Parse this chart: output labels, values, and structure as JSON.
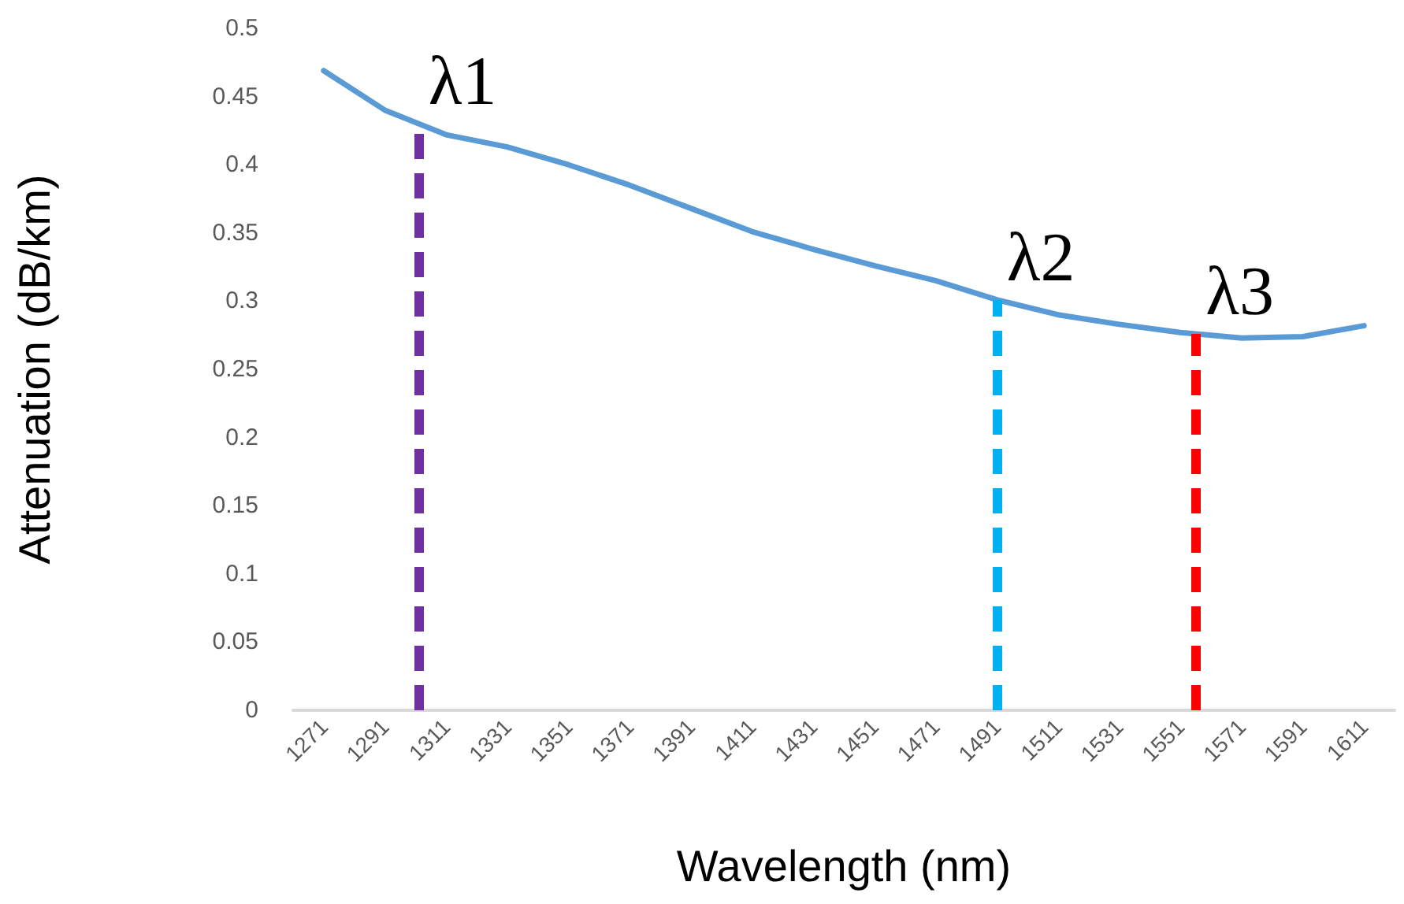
{
  "chart_data": {
    "type": "line",
    "xlabel": "Wavelength (nm)",
    "ylabel": "Attenuation (dB/km)",
    "x": [
      1271,
      1291,
      1311,
      1331,
      1351,
      1371,
      1391,
      1411,
      1431,
      1451,
      1471,
      1491,
      1511,
      1531,
      1551,
      1571,
      1591,
      1611
    ],
    "series": [
      {
        "color": "#5b9bd5",
        "values": [
          0.469,
          0.44,
          0.422,
          0.413,
          0.4,
          0.385,
          0.368,
          0.351,
          0.338,
          0.326,
          0.315,
          0.301,
          0.29,
          0.283,
          0.277,
          0.273,
          0.274,
          0.282
        ]
      }
    ],
    "xlim": [
      1261,
      1621
    ],
    "xticks": [
      1271,
      1291,
      1311,
      1331,
      1351,
      1371,
      1391,
      1411,
      1431,
      1451,
      1471,
      1491,
      1511,
      1531,
      1551,
      1571,
      1591,
      1611
    ],
    "ylim": [
      0,
      0.5
    ],
    "yticks": [
      0,
      0.05,
      0.1,
      0.15,
      0.2,
      0.25,
      0.3,
      0.35,
      0.4,
      0.45,
      0.5
    ],
    "grid": false,
    "marker": "none",
    "line_style": "solid",
    "ref_lines": [
      {
        "axis": "x",
        "value": 1302,
        "label": "λ1",
        "color": "#7030a0",
        "line_style": "dashed"
      },
      {
        "axis": "x",
        "value": 1491,
        "label": "λ2",
        "color": "#00b0f0",
        "line_style": "dashed"
      },
      {
        "axis": "x",
        "value": 1556,
        "label": "λ3",
        "color": "#ff0000",
        "line_style": "dashed"
      }
    ]
  }
}
